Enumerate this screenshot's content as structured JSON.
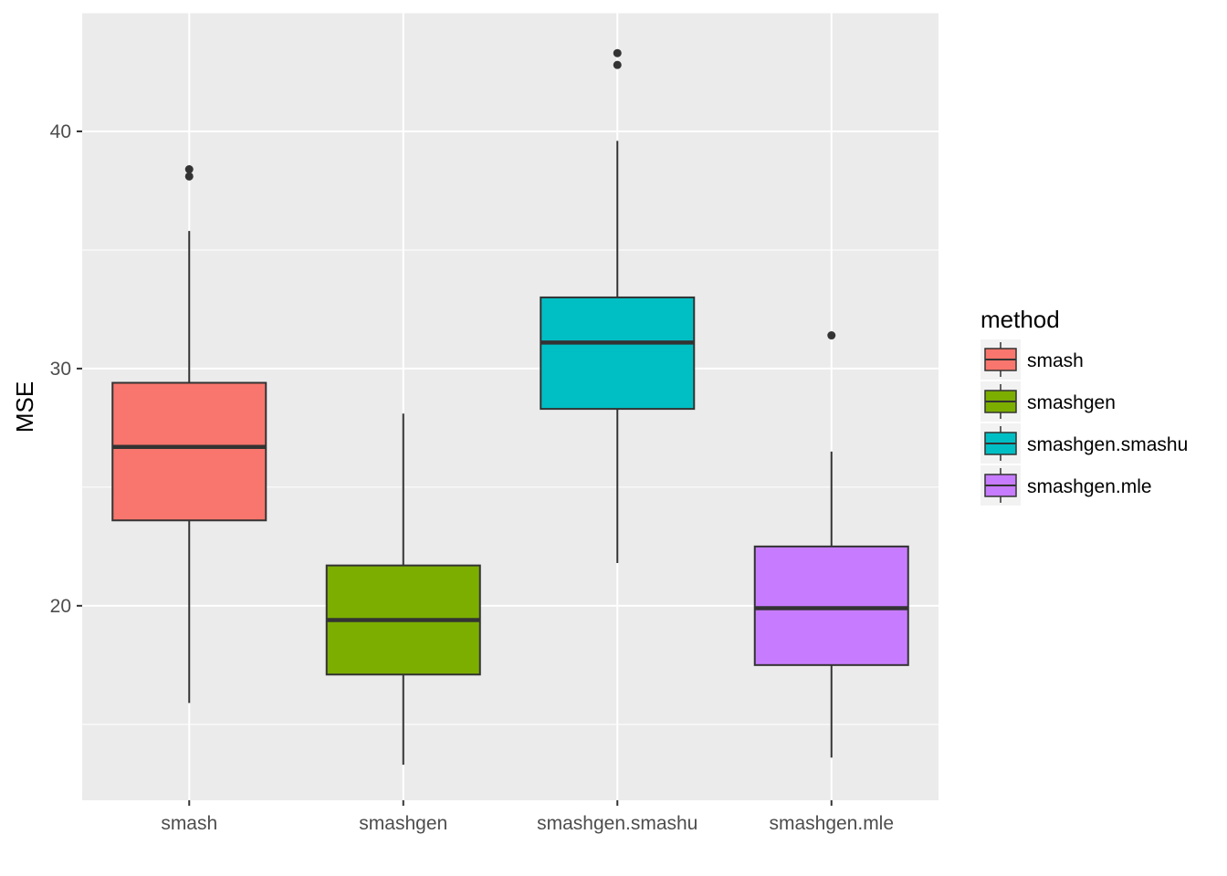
{
  "chart_data": {
    "type": "boxplot",
    "xlabel": "",
    "ylabel": "MSE",
    "ylim": [
      11.8,
      45.0
    ],
    "yticks": [
      20,
      30,
      40
    ],
    "categories": [
      "smash",
      "smashgen",
      "smashgen.smashu",
      "smashgen.mle"
    ],
    "series": [
      {
        "name": "smash",
        "color": "#F8766D",
        "whisker_low": 15.9,
        "q1": 23.6,
        "median": 26.7,
        "q3": 29.4,
        "whisker_high": 35.8,
        "outliers": [
          38.1,
          38.4
        ]
      },
      {
        "name": "smashgen",
        "color": "#7CAE00",
        "whisker_low": 13.3,
        "q1": 17.1,
        "median": 19.4,
        "q3": 21.7,
        "whisker_high": 28.1,
        "outliers": []
      },
      {
        "name": "smashgen.smashu",
        "color": "#00BFC4",
        "whisker_low": 21.8,
        "q1": 28.3,
        "median": 31.1,
        "q3": 33.0,
        "whisker_high": 39.6,
        "outliers": [
          42.8,
          43.3
        ]
      },
      {
        "name": "smashgen.mle",
        "color": "#C77CFF",
        "whisker_low": 13.6,
        "q1": 17.5,
        "median": 19.9,
        "q3": 22.5,
        "whisker_high": 26.5,
        "outliers": [
          31.4
        ]
      }
    ],
    "grid": true,
    "legend": {
      "title": "method",
      "position": "right"
    }
  }
}
